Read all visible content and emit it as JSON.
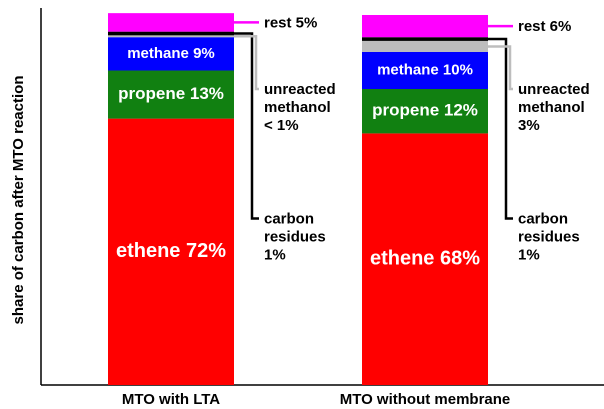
{
  "chart_data": {
    "type": "bar",
    "stacked": true,
    "ylabel": "share of carbon after MTO reaction",
    "ylim": [
      0,
      100
    ],
    "categories": [
      "MTO with LTA",
      "MTO without membrane"
    ],
    "series": [
      {
        "name": "ethene",
        "color": "#ff0000",
        "values": [
          72,
          68
        ]
      },
      {
        "name": "propene",
        "color": "#118011",
        "values": [
          13,
          12
        ]
      },
      {
        "name": "methane",
        "color": "#0000ff",
        "values": [
          9,
          10
        ]
      },
      {
        "name": "unreacted methanol",
        "color": "#bdbdbd",
        "values": [
          0.5,
          3
        ]
      },
      {
        "name": "carbon residues",
        "color": "#000000",
        "values": [
          1,
          1
        ]
      },
      {
        "name": "rest",
        "color": "#ff00ff",
        "values": [
          5,
          6
        ]
      }
    ],
    "segment_labels": [
      [
        "ethene 72%",
        "propene 13%",
        "methane 9%",
        "",
        "",
        ""
      ],
      [
        "ethene 68%",
        "propene 12%",
        "methane 10%",
        "",
        "",
        ""
      ]
    ],
    "annotations": [
      [
        {
          "series": "rest",
          "lines": [
            "rest 5%"
          ]
        },
        {
          "series": "carbon residues",
          "lines": [
            "carbon",
            "residues",
            "1%"
          ]
        },
        {
          "series": "unreacted methanol",
          "lines": [
            "unreacted",
            "methanol",
            "< 1%"
          ]
        }
      ],
      [
        {
          "series": "rest",
          "lines": [
            "rest 6%"
          ]
        },
        {
          "series": "carbon residues",
          "lines": [
            "carbon",
            "residues",
            "1%"
          ]
        },
        {
          "series": "unreacted methanol",
          "lines": [
            "unreacted",
            "methanol",
            "3%"
          ]
        }
      ]
    ]
  }
}
